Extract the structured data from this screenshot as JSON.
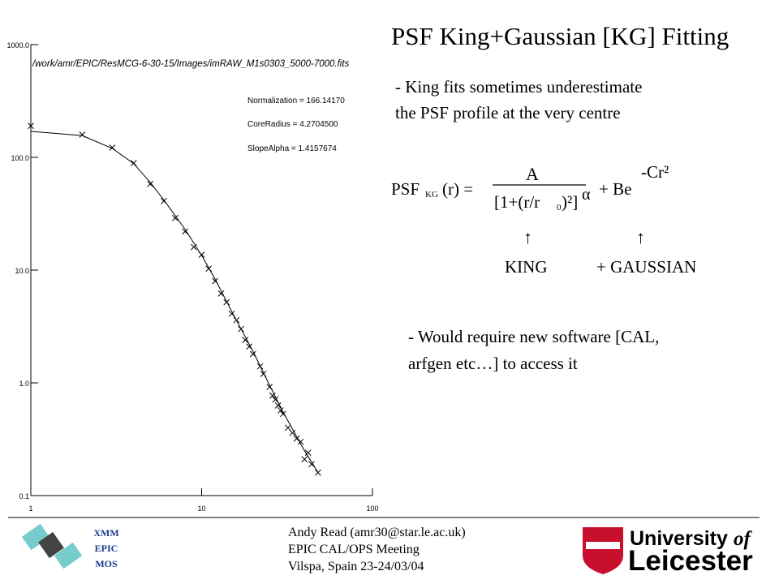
{
  "slide": {
    "title": "PSF King+Gaussian [KG] Fitting",
    "bullet1": [
      "- King fits sometimes underestimate",
      "the PSF profile at the very centre"
    ],
    "formula": {
      "lhs": "PSF",
      "sub": "KG",
      "lhs_end": "(r) =",
      "numerator": "A",
      "denominator": "[1+(r/r",
      "den_sub": "0",
      "den_end": ")²]",
      "power": "α",
      "plus": "+ Be",
      "exponent": "-Cr²"
    },
    "arrows": [
      "↑",
      "↑"
    ],
    "labels": [
      "KING",
      "+ GAUSSIAN"
    ],
    "bullet2": [
      "- Would require new software [CAL,",
      "arfgen etc…] to access it"
    ],
    "footer": [
      "Andy Read (amr30@star.le.ac.uk)",
      "EPIC CAL/OPS Meeting",
      "Vilspa, Spain 23-24/03/04"
    ],
    "mission": [
      "XMM",
      "EPIC",
      "MOS"
    ],
    "university": [
      "University",
      "of",
      "Leicester"
    ]
  },
  "chart_data": {
    "type": "scatter",
    "path_label": "/work/amr/EPIC/ResMCG-6-30-15/Images/imRAW_M1s0303_5000-7000.fits",
    "annotations": [
      "Normalization = 166.14170",
      "CoreRadius =   4.2704500",
      "SlopeAlpha =   1.4157674"
    ],
    "log_x": true,
    "log_y": true,
    "xlim": [
      1,
      100
    ],
    "ylim": [
      0.1,
      1000
    ],
    "xticks": [
      1,
      10,
      100
    ],
    "yticks": [
      {
        "value": 0.1,
        "label": "0.1"
      },
      {
        "value": 1,
        "label": "1.0"
      },
      {
        "value": 10,
        "label": "10.0"
      },
      {
        "value": 100,
        "label": "100.0"
      },
      {
        "value": 1000,
        "label": "1000.0"
      }
    ],
    "series": [
      {
        "name": "data",
        "color": "#000000",
        "x": [
          1,
          2,
          3,
          4,
          5,
          6,
          7,
          8,
          9,
          10,
          11,
          12,
          13,
          14,
          15,
          16,
          17,
          18,
          19,
          20,
          22,
          23,
          25,
          26,
          27,
          28,
          29,
          30,
          32,
          34,
          36,
          38,
          40,
          42,
          44,
          48
        ],
        "values": [
          190,
          159,
          122,
          89,
          58,
          41,
          29,
          22,
          16,
          13.7,
          10.3,
          8.0,
          6.2,
          5.2,
          4.1,
          3.6,
          3.0,
          2.4,
          2.1,
          1.8,
          1.4,
          1.2,
          0.92,
          0.77,
          0.71,
          0.63,
          0.57,
          0.53,
          0.4,
          0.36,
          0.32,
          0.3,
          0.21,
          0.24,
          0.19,
          0.16
        ]
      },
      {
        "name": "fit",
        "color": "#000000",
        "x": [
          1,
          2,
          3,
          4,
          5,
          6,
          8,
          10,
          12,
          15,
          20,
          25,
          30,
          40,
          48
        ],
        "values": [
          170,
          156,
          120,
          88,
          60,
          42,
          23,
          13.5,
          8.3,
          4.3,
          1.9,
          0.95,
          0.55,
          0.25,
          0.16
        ]
      }
    ]
  }
}
